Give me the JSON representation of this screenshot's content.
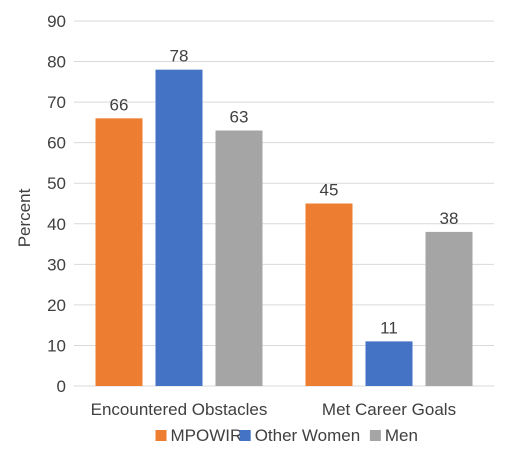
{
  "chart_data": {
    "type": "bar",
    "categories": [
      "Encountered Obstacles",
      "Met Career Goals"
    ],
    "series": [
      {
        "name": "MPOWIR",
        "values": [
          66,
          45
        ],
        "color": "#ED7D31"
      },
      {
        "name": "Other Women",
        "values": [
          78,
          11
        ],
        "color": "#4472C4"
      },
      {
        "name": "Men",
        "values": [
          63,
          38
        ],
        "color": "#A5A5A5"
      }
    ],
    "title": "",
    "xlabel": "",
    "ylabel": "Percent",
    "ylim": [
      0,
      90
    ],
    "yticks": [
      0,
      10,
      20,
      30,
      40,
      50,
      60,
      70,
      80,
      90
    ],
    "grid": true,
    "legend_position": "bottom",
    "show_data_labels": true
  }
}
